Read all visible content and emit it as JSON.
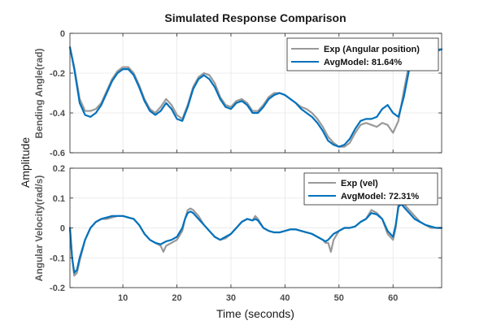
{
  "figure": {
    "title": "Simulated Response Comparison",
    "shared_ylabel": "Amplitude",
    "xlabel": "Time (seconds)"
  },
  "colors": {
    "experiment": "#999999",
    "model": "#0072bd",
    "axis": "#262626",
    "grid": "#e6e6e6"
  },
  "chart_data": [
    {
      "type": "line",
      "ylabel": "Bending Angle(rad)",
      "xlim": [
        0.2,
        69
      ],
      "ylim": [
        -0.6,
        0
      ],
      "xticks": [
        10,
        20,
        30,
        40,
        50,
        60
      ],
      "yticks": [
        0,
        -0.2,
        -0.4,
        -0.6
      ],
      "ytick_labels": [
        "0",
        "-0.2",
        "-0.4",
        "-0.6"
      ],
      "legend_position": "top-right",
      "series": [
        {
          "name": "Exp (Angular position)",
          "x": [
            0.2,
            1,
            2,
            3,
            4,
            5,
            6,
            7,
            8,
            9,
            10,
            11,
            12,
            13,
            14,
            15,
            16,
            17,
            18,
            19,
            20,
            21,
            22,
            23,
            24,
            25,
            26,
            27,
            28,
            29,
            30,
            31,
            32,
            33,
            34,
            35,
            36,
            37,
            38,
            39,
            40,
            41,
            42,
            43,
            44,
            45,
            46,
            47,
            48,
            49,
            50,
            51,
            52,
            53,
            54,
            55,
            56,
            57,
            58,
            59,
            60,
            61,
            62,
            63,
            64,
            65,
            66,
            67,
            68,
            69
          ],
          "y": [
            -0.07,
            -0.17,
            -0.33,
            -0.39,
            -0.39,
            -0.38,
            -0.35,
            -0.29,
            -0.23,
            -0.19,
            -0.17,
            -0.17,
            -0.2,
            -0.26,
            -0.33,
            -0.38,
            -0.4,
            -0.37,
            -0.33,
            -0.36,
            -0.41,
            -0.43,
            -0.36,
            -0.27,
            -0.22,
            -0.2,
            -0.21,
            -0.25,
            -0.32,
            -0.36,
            -0.37,
            -0.34,
            -0.33,
            -0.35,
            -0.39,
            -0.39,
            -0.36,
            -0.32,
            -0.3,
            -0.3,
            -0.31,
            -0.33,
            -0.35,
            -0.37,
            -0.38,
            -0.4,
            -0.43,
            -0.47,
            -0.52,
            -0.55,
            -0.57,
            -0.57,
            -0.55,
            -0.5,
            -0.46,
            -0.45,
            -0.46,
            -0.47,
            -0.45,
            -0.46,
            -0.5,
            -0.44,
            -0.29,
            -0.15,
            -0.1,
            -0.08,
            -0.09,
            -0.1,
            -0.08,
            -0.08
          ]
        },
        {
          "name": "AvgModel: 81.64%",
          "x": [
            0.2,
            1,
            2,
            3,
            4,
            5,
            6,
            7,
            8,
            9,
            10,
            11,
            12,
            13,
            14,
            15,
            16,
            17,
            18,
            19,
            20,
            21,
            22,
            23,
            24,
            25,
            26,
            27,
            28,
            29,
            30,
            31,
            32,
            33,
            34,
            35,
            36,
            37,
            38,
            39,
            40,
            41,
            42,
            43,
            44,
            45,
            46,
            47,
            48,
            49,
            50,
            51,
            52,
            53,
            54,
            55,
            56,
            57,
            58,
            59,
            60,
            61,
            62,
            63,
            64,
            65,
            66,
            67,
            68,
            69
          ],
          "y": [
            -0.07,
            -0.18,
            -0.35,
            -0.41,
            -0.42,
            -0.4,
            -0.36,
            -0.3,
            -0.24,
            -0.2,
            -0.18,
            -0.18,
            -0.21,
            -0.27,
            -0.34,
            -0.39,
            -0.41,
            -0.39,
            -0.35,
            -0.38,
            -0.43,
            -0.44,
            -0.37,
            -0.28,
            -0.23,
            -0.21,
            -0.23,
            -0.27,
            -0.33,
            -0.37,
            -0.38,
            -0.35,
            -0.34,
            -0.36,
            -0.4,
            -0.4,
            -0.37,
            -0.33,
            -0.31,
            -0.3,
            -0.31,
            -0.33,
            -0.35,
            -0.38,
            -0.4,
            -0.42,
            -0.45,
            -0.49,
            -0.54,
            -0.56,
            -0.57,
            -0.56,
            -0.53,
            -0.48,
            -0.44,
            -0.43,
            -0.43,
            -0.42,
            -0.38,
            -0.36,
            -0.4,
            -0.42,
            -0.32,
            -0.18,
            -0.12,
            -0.1,
            -0.11,
            -0.11,
            -0.09,
            -0.08
          ]
        }
      ]
    },
    {
      "type": "line",
      "ylabel": "Angular Velocity(rad/s)",
      "xlim": [
        0.2,
        69
      ],
      "ylim": [
        -0.2,
        0.2
      ],
      "xticks": [
        10,
        20,
        30,
        40,
        50,
        60
      ],
      "xtick_labels": [
        "10",
        "20",
        "30",
        "40",
        "50",
        "60"
      ],
      "yticks": [
        0.2,
        0.1,
        0,
        -0.1,
        -0.2
      ],
      "ytick_labels": [
        "0.2",
        "0.1",
        "0",
        "-0.1",
        "-0.2"
      ],
      "legend_position": "top-right",
      "series": [
        {
          "name": "Exp (vel)",
          "x": [
            0.2,
            0.6,
            1,
            1.5,
            2,
            3,
            4,
            5,
            6,
            7,
            8,
            9,
            10,
            11,
            12,
            13,
            14,
            15,
            16,
            17,
            17.5,
            18,
            19,
            20,
            21,
            21.5,
            22,
            22.5,
            23,
            24,
            25,
            26,
            27,
            28,
            29,
            30,
            31,
            32,
            33,
            34,
            34.5,
            35,
            36,
            37,
            38,
            39,
            40,
            41,
            42,
            43,
            44,
            45,
            46,
            47,
            47.5,
            48,
            48.5,
            49,
            50,
            51,
            52,
            53,
            54,
            55,
            56,
            57,
            58,
            59,
            60,
            60.5,
            61,
            61.5,
            62,
            63,
            64,
            65,
            66,
            67,
            68,
            69
          ],
          "y": [
            0.0,
            -0.1,
            -0.16,
            -0.15,
            -0.11,
            -0.04,
            0.0,
            0.02,
            0.03,
            0.03,
            0.035,
            0.04,
            0.04,
            0.035,
            0.03,
            0.01,
            -0.02,
            -0.04,
            -0.05,
            -0.06,
            -0.08,
            -0.06,
            -0.05,
            -0.04,
            -0.01,
            0.03,
            0.06,
            0.065,
            0.06,
            0.04,
            0.01,
            -0.01,
            -0.03,
            -0.04,
            -0.035,
            -0.02,
            0.0,
            0.02,
            0.03,
            0.025,
            0.04,
            0.03,
            0.0,
            -0.01,
            -0.015,
            -0.015,
            -0.01,
            -0.005,
            -0.005,
            -0.01,
            -0.015,
            -0.02,
            -0.03,
            -0.04,
            -0.05,
            -0.05,
            -0.08,
            -0.04,
            -0.01,
            0.0,
            0.0,
            0.005,
            0.02,
            0.03,
            0.06,
            0.05,
            0.03,
            -0.02,
            -0.04,
            0.0,
            0.08,
            0.09,
            0.08,
            0.06,
            0.04,
            0.02,
            0.01,
            0.0,
            0.0,
            0.0
          ]
        },
        {
          "name": "AvgModel: 72.31%",
          "x": [
            0.2,
            0.6,
            1,
            1.5,
            2,
            3,
            4,
            5,
            6,
            7,
            8,
            9,
            10,
            11,
            12,
            13,
            14,
            15,
            16,
            17,
            17.5,
            18,
            19,
            20,
            21,
            21.5,
            22,
            22.5,
            23,
            24,
            25,
            26,
            27,
            28,
            29,
            30,
            31,
            32,
            33,
            34,
            34.5,
            35,
            36,
            37,
            38,
            39,
            40,
            41,
            42,
            43,
            44,
            45,
            46,
            47,
            47.5,
            48,
            48.5,
            49,
            50,
            51,
            52,
            53,
            54,
            55,
            56,
            57,
            58,
            59,
            60,
            60.5,
            61,
            61.5,
            62,
            63,
            64,
            65,
            66,
            67,
            68,
            69
          ],
          "y": [
            0.0,
            -0.1,
            -0.15,
            -0.14,
            -0.1,
            -0.04,
            0.0,
            0.02,
            0.03,
            0.035,
            0.04,
            0.04,
            0.04,
            0.035,
            0.03,
            0.01,
            -0.02,
            -0.04,
            -0.05,
            -0.055,
            -0.05,
            -0.045,
            -0.04,
            -0.03,
            0.0,
            0.03,
            0.05,
            0.055,
            0.05,
            0.03,
            0.01,
            -0.01,
            -0.03,
            -0.04,
            -0.03,
            -0.02,
            0.0,
            0.02,
            0.03,
            0.025,
            0.03,
            0.025,
            0.0,
            -0.01,
            -0.015,
            -0.015,
            -0.01,
            -0.005,
            -0.005,
            -0.01,
            -0.015,
            -0.02,
            -0.03,
            -0.04,
            -0.045,
            -0.04,
            -0.03,
            -0.02,
            -0.01,
            0.0,
            0.0,
            0.005,
            0.02,
            0.03,
            0.05,
            0.045,
            0.03,
            -0.01,
            -0.03,
            0.01,
            0.07,
            0.08,
            0.07,
            0.05,
            0.03,
            0.02,
            0.01,
            0.005,
            0.0,
            0.0
          ]
        }
      ]
    }
  ]
}
